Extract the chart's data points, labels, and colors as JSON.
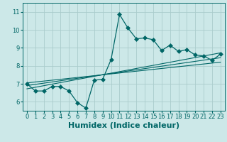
{
  "title": "",
  "xlabel": "Humidex (Indice chaleur)",
  "bg_color": "#cce8e8",
  "grid_color": "#aacccc",
  "line_color": "#006666",
  "xlim": [
    -0.5,
    23.5
  ],
  "ylim": [
    5.5,
    11.5
  ],
  "xticks": [
    0,
    1,
    2,
    3,
    4,
    5,
    6,
    7,
    8,
    9,
    10,
    11,
    12,
    13,
    14,
    15,
    16,
    17,
    18,
    19,
    20,
    21,
    22,
    23
  ],
  "yticks": [
    6,
    7,
    8,
    9,
    10,
    11
  ],
  "main_x": [
    0,
    1,
    2,
    3,
    4,
    5,
    6,
    7,
    8,
    9,
    10,
    11,
    12,
    13,
    14,
    15,
    16,
    17,
    18,
    19,
    20,
    21,
    22,
    23
  ],
  "main_y": [
    7.0,
    6.6,
    6.6,
    6.85,
    6.85,
    6.6,
    5.95,
    5.65,
    7.2,
    7.25,
    8.35,
    10.85,
    10.1,
    9.5,
    9.55,
    9.45,
    8.85,
    9.15,
    8.8,
    8.9,
    8.6,
    8.55,
    8.3,
    8.65
  ],
  "reg_lines": [
    {
      "x": [
        0,
        23
      ],
      "y": [
        6.72,
        8.72
      ]
    },
    {
      "x": [
        0,
        23
      ],
      "y": [
        6.9,
        8.45
      ]
    },
    {
      "x": [
        0,
        23
      ],
      "y": [
        7.05,
        8.2
      ]
    }
  ],
  "xlabel_fontsize": 8,
  "tick_fontsize": 6,
  "marker_size": 3,
  "lw_main": 0.9,
  "lw_reg": 0.8
}
